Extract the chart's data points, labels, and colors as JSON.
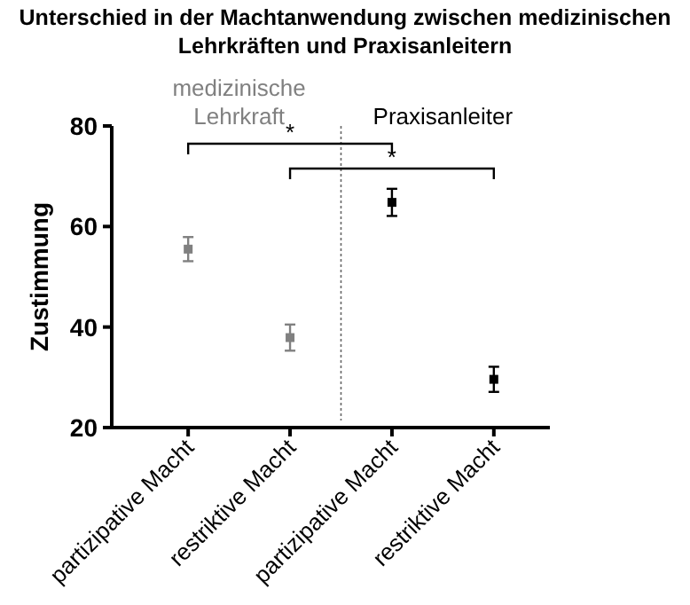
{
  "chart_data": {
    "type": "scatter",
    "title": "Unterschied in der Machtanwendung zwischen medizinischen Lehrkräften und Praxisanleitern",
    "ylabel": "Zustimmung",
    "categories": [
      "partizipative Macht",
      "restriktive Macht",
      "partizipative Macht",
      "restriktive Macht"
    ],
    "series": [
      {
        "name": "medizinische Lehrkraft",
        "color": "#808080",
        "values": [
          55.5,
          37.9,
          null,
          null
        ],
        "errors": [
          2.4,
          2.6,
          null,
          null
        ]
      },
      {
        "name": "Praxisanleiter",
        "color": "#000000",
        "values": [
          null,
          null,
          64.8,
          29.6
        ],
        "errors": [
          null,
          null,
          2.7,
          2.5
        ]
      }
    ],
    "ylim": [
      20,
      80
    ],
    "yticks": [
      20,
      40,
      60,
      80
    ],
    "grid": false,
    "marker": "square",
    "annotations": [
      "*",
      "*"
    ]
  }
}
